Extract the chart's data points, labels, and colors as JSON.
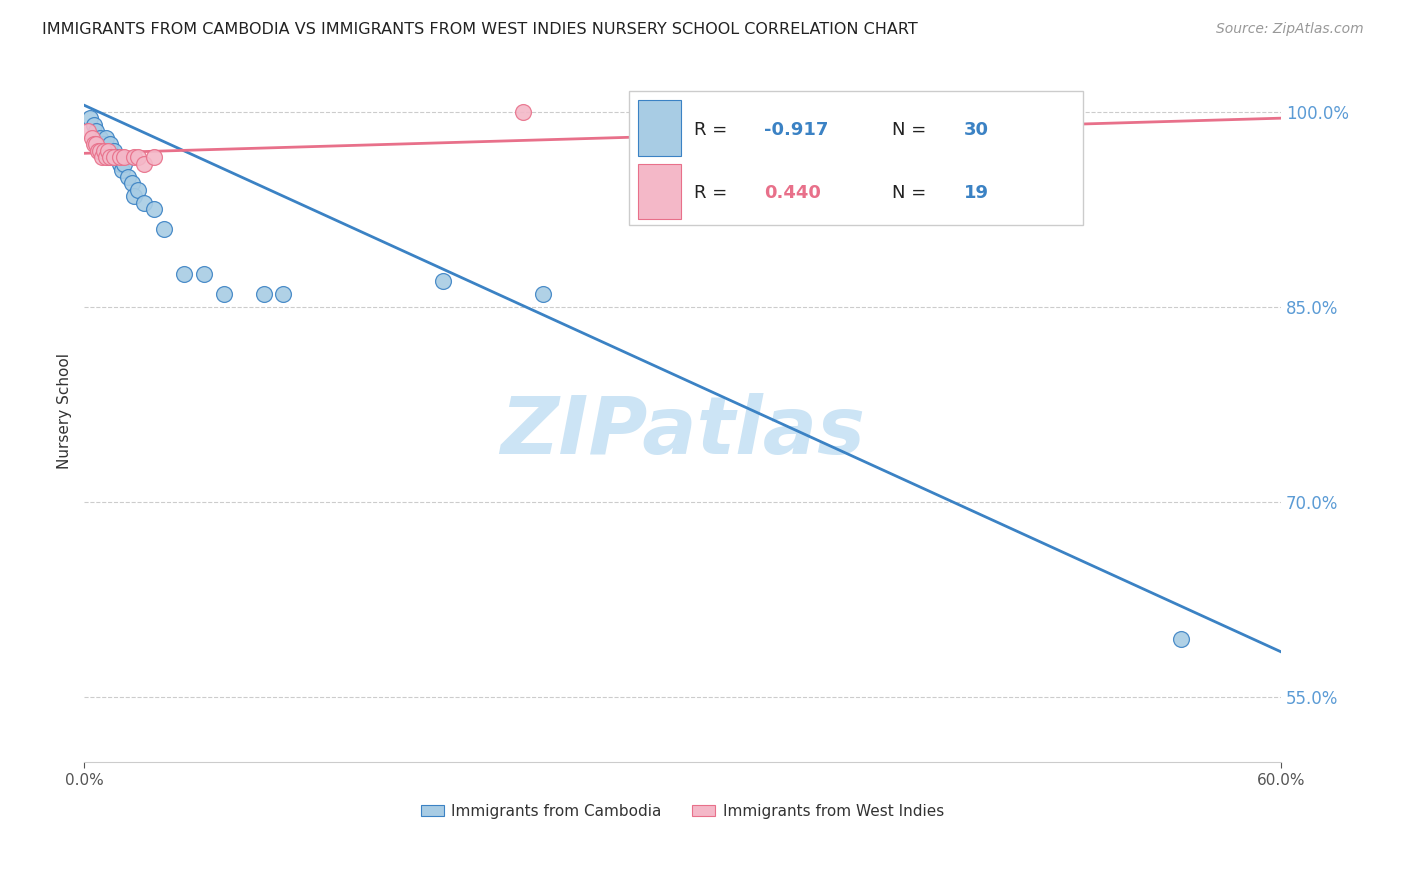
{
  "title": "IMMIGRANTS FROM CAMBODIA VS IMMIGRANTS FROM WEST INDIES NURSERY SCHOOL CORRELATION CHART",
  "source": "Source: ZipAtlas.com",
  "ylabel": "Nursery School",
  "ytick_labels": [
    "100.0%",
    "85.0%",
    "70.0%",
    "55.0%"
  ],
  "ytick_values": [
    1.0,
    0.85,
    0.7,
    0.55
  ],
  "xlim": [
    0.0,
    0.6
  ],
  "ylim": [
    0.5,
    1.04
  ],
  "legend_blue_R": "R = -0.917",
  "legend_blue_N": "N = 30",
  "legend_pink_R": "R = 0.440",
  "legend_pink_N": "N = 19",
  "legend_label_blue": "Immigrants from Cambodia",
  "legend_label_pink": "Immigrants from West Indies",
  "blue_color": "#a8cce4",
  "pink_color": "#f4b8c8",
  "line_blue_color": "#3b82c4",
  "line_pink_color": "#e8708a",
  "rn_color": "#3b82c4",
  "watermark_color": "#cce4f5",
  "blue_scatter_x": [
    0.003,
    0.005,
    0.006,
    0.008,
    0.009,
    0.01,
    0.011,
    0.012,
    0.013,
    0.015,
    0.016,
    0.017,
    0.018,
    0.019,
    0.02,
    0.022,
    0.024,
    0.025,
    0.027,
    0.03,
    0.035,
    0.04,
    0.05,
    0.06,
    0.07,
    0.09,
    0.1,
    0.18,
    0.23,
    0.55
  ],
  "blue_scatter_y": [
    0.995,
    0.99,
    0.985,
    0.98,
    0.975,
    0.975,
    0.98,
    0.965,
    0.975,
    0.97,
    0.965,
    0.965,
    0.96,
    0.955,
    0.96,
    0.95,
    0.945,
    0.935,
    0.94,
    0.93,
    0.925,
    0.91,
    0.875,
    0.875,
    0.86,
    0.86,
    0.86,
    0.87,
    0.86,
    0.595
  ],
  "pink_scatter_x": [
    0.002,
    0.004,
    0.005,
    0.006,
    0.007,
    0.008,
    0.009,
    0.01,
    0.011,
    0.012,
    0.013,
    0.015,
    0.018,
    0.02,
    0.025,
    0.027,
    0.03,
    0.035,
    0.22
  ],
  "pink_scatter_y": [
    0.985,
    0.98,
    0.975,
    0.975,
    0.97,
    0.97,
    0.965,
    0.97,
    0.965,
    0.97,
    0.965,
    0.965,
    0.965,
    0.965,
    0.965,
    0.965,
    0.96,
    0.965,
    1.0
  ],
  "blue_line_x": [
    0.0,
    0.6
  ],
  "blue_line_y": [
    1.005,
    0.585
  ],
  "pink_line_x": [
    0.0,
    0.6
  ],
  "pink_line_y": [
    0.968,
    0.995
  ]
}
